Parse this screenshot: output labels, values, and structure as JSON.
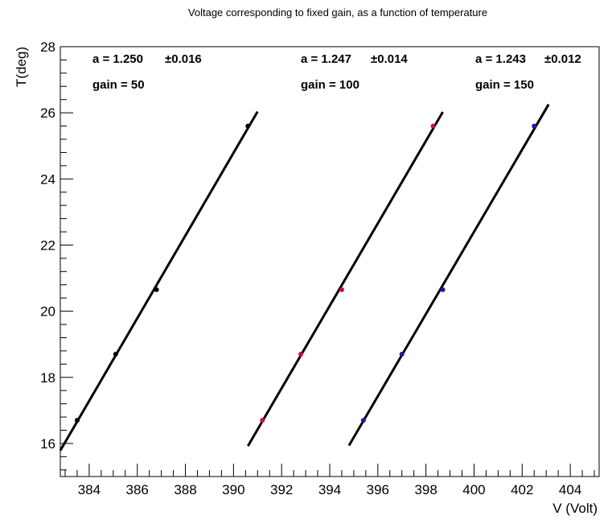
{
  "chart_data": {
    "type": "scatter",
    "title": "Voltage corresponding to fixed gain, as a function of temperature",
    "xlabel": "V (Volt)",
    "ylabel": "T(deg)",
    "xlim": [
      382.8,
      405.2
    ],
    "ylim": [
      15.0,
      28.0
    ],
    "x_major_ticks": [
      384,
      386,
      388,
      390,
      392,
      394,
      396,
      398,
      400,
      402,
      404
    ],
    "x_tick_labels": [
      "384",
      "386",
      "388",
      "390",
      "392",
      "394",
      "396",
      "398",
      "400",
      "402",
      "404"
    ],
    "y_major_ticks": [
      16,
      18,
      20,
      22,
      24,
      26,
      28
    ],
    "y_tick_labels": [
      "16",
      "18",
      "20",
      "22",
      "24",
      "26",
      "28"
    ],
    "grid": false,
    "series": [
      {
        "name": "gain = 50",
        "color": "#000000",
        "x": [
          383.5,
          385.1,
          386.8,
          390.6
        ],
        "y": [
          16.7,
          18.7,
          20.65,
          25.6
        ],
        "fit_slope": 1.25,
        "fit_x_range": [
          382.8,
          391.0
        ],
        "annotation_a": "a = 1.250",
        "annotation_err": "±0.016",
        "annotation_gain": "gain = 50"
      },
      {
        "name": "gain = 100",
        "color": "#c8102e",
        "x": [
          391.2,
          392.8,
          394.5,
          398.3
        ],
        "y": [
          16.7,
          18.7,
          20.65,
          25.6
        ],
        "fit_slope": 1.247,
        "fit_x_range": [
          390.6,
          398.7
        ],
        "annotation_a": "a = 1.247",
        "annotation_err": "±0.014",
        "annotation_gain": "gain = 100"
      },
      {
        "name": "gain = 150",
        "color": "#1a1aa6",
        "x": [
          395.4,
          397.0,
          398.7,
          402.5
        ],
        "y": [
          16.7,
          18.7,
          20.65,
          25.6
        ],
        "fit_slope": 1.243,
        "fit_x_range": [
          394.8,
          403.1
        ],
        "annotation_a": "a = 1.243",
        "annotation_err": "±0.012",
        "annotation_gain": "gain = 150"
      }
    ]
  }
}
